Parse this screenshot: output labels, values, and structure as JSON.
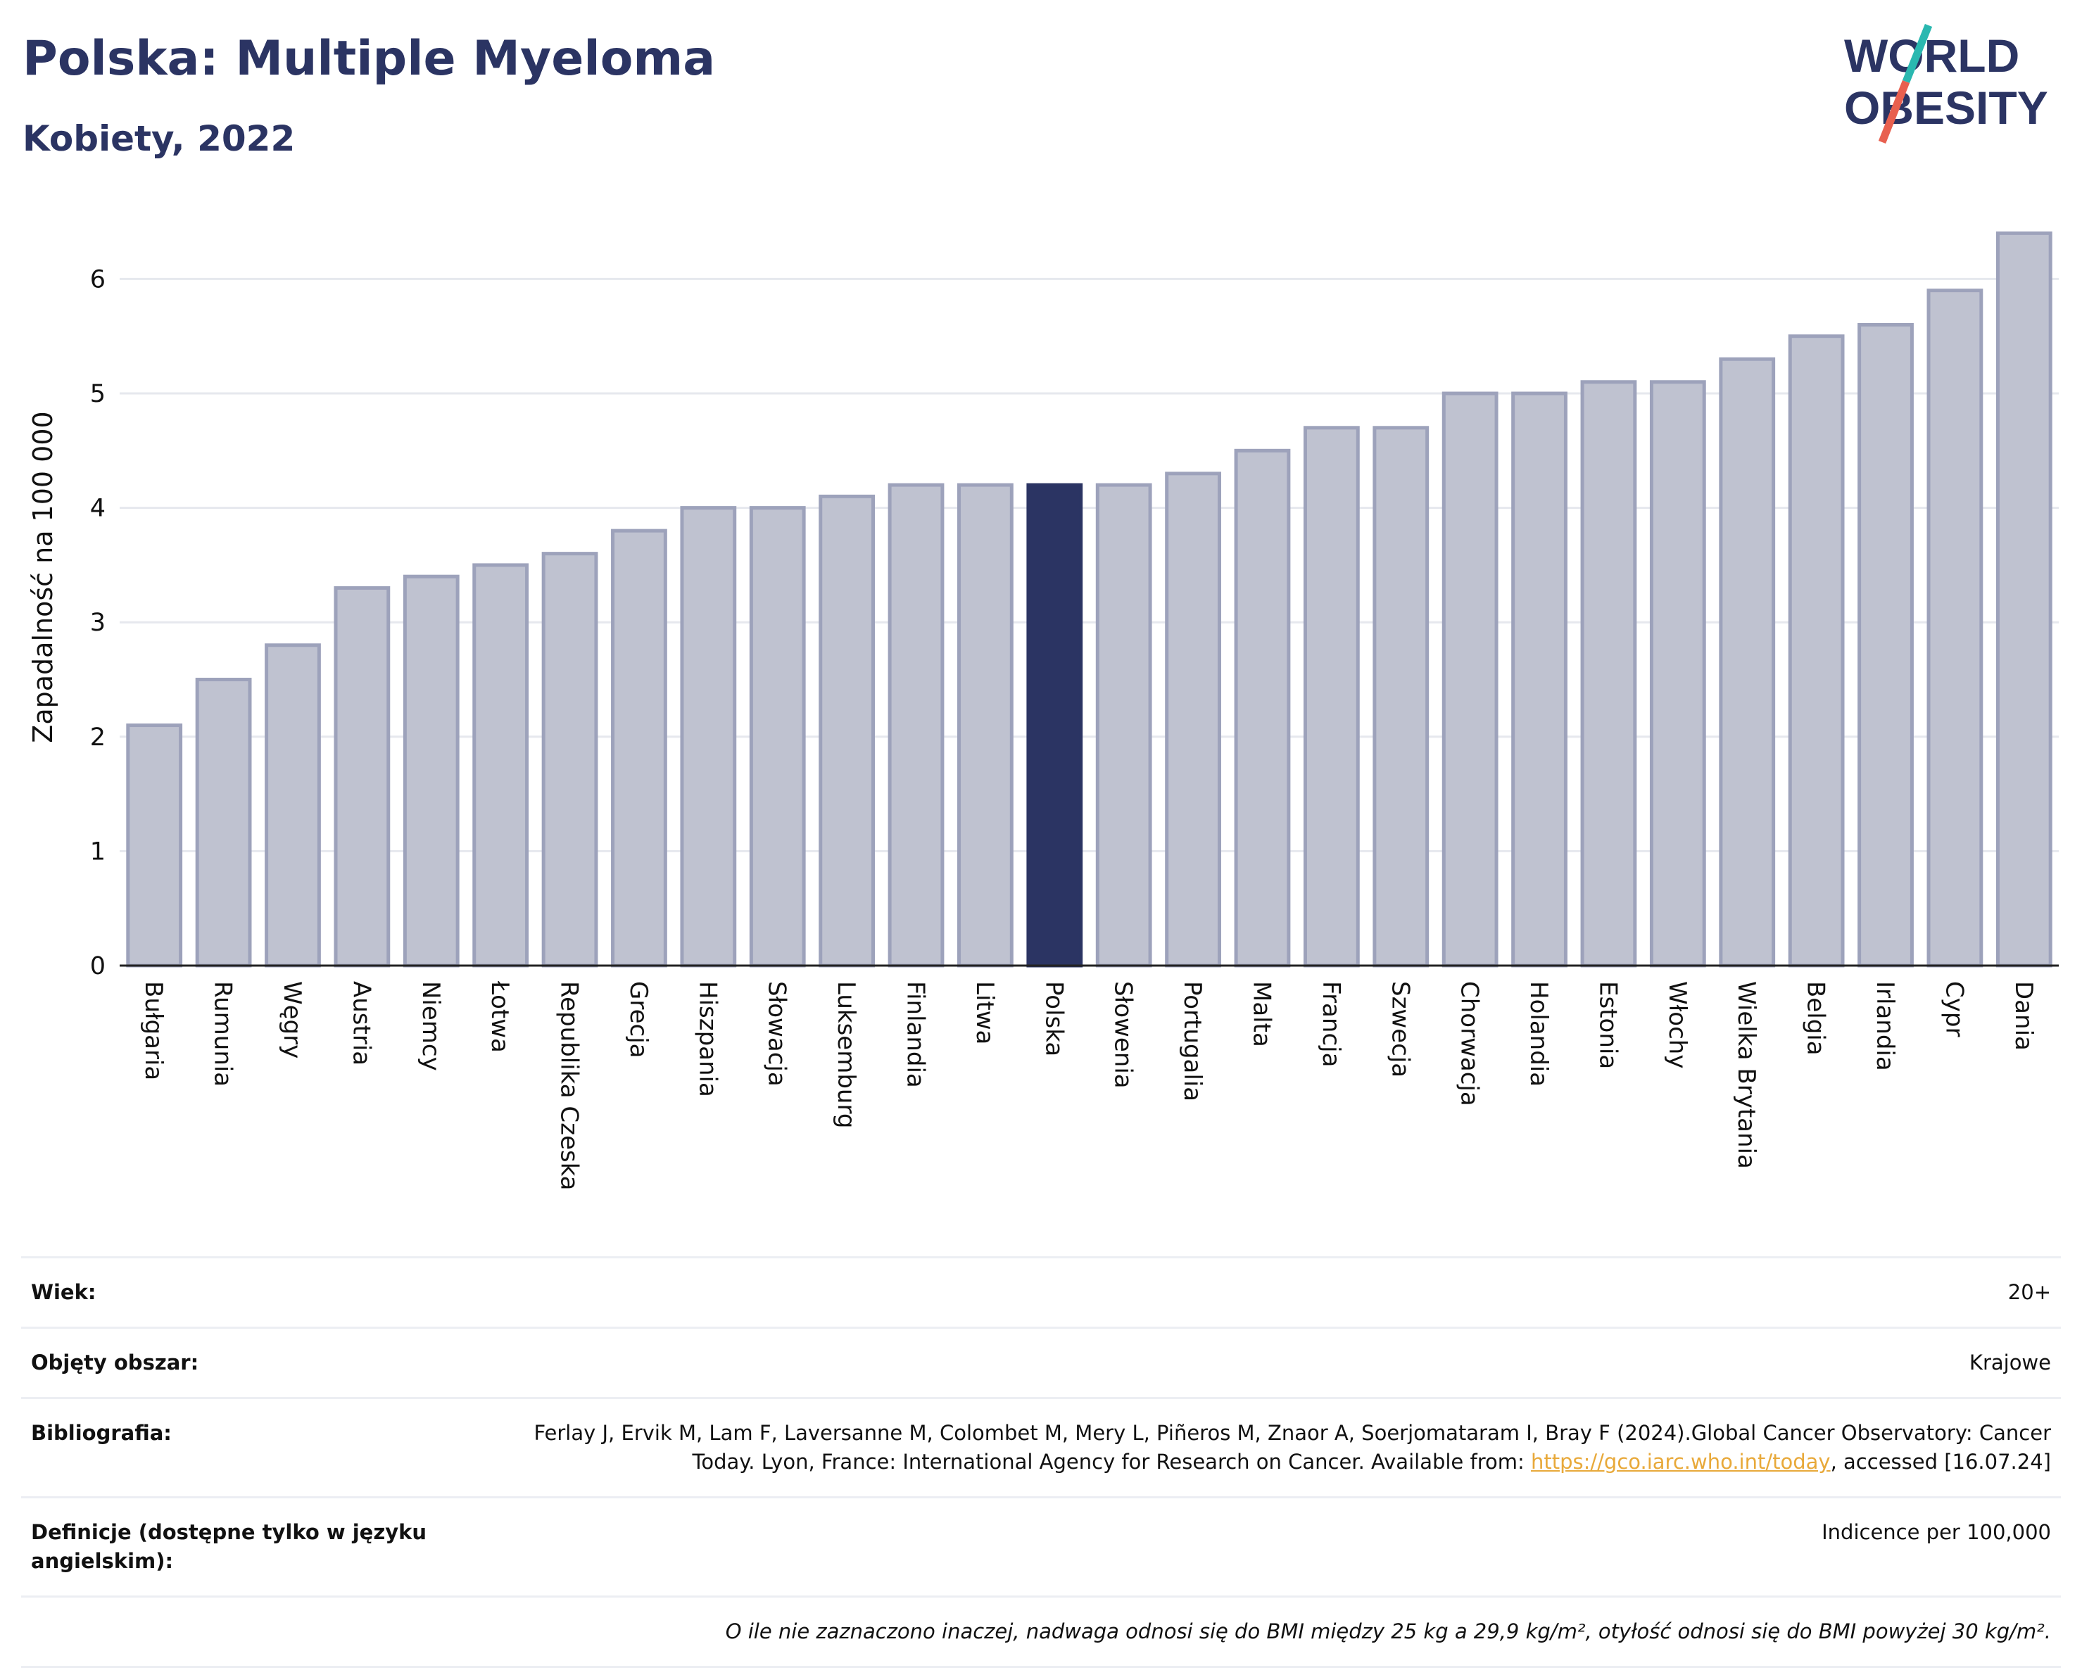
{
  "header": {
    "title": "Polska: Multiple Myeloma",
    "subtitle": "Kobiety, 2022"
  },
  "logo": {
    "line1": "WORLD",
    "line2": "OBESITY",
    "accent_colors": [
      "#2ab8b0",
      "#e8604f"
    ]
  },
  "colors": {
    "bar": "#bfc2d0",
    "bar_border": "#9da2bb",
    "highlight": "#2b3463",
    "title": "#2b3463",
    "link": "#e8a93a"
  },
  "chart_data": {
    "type": "bar",
    "title": "Polska: Multiple Myeloma",
    "subtitle": "Kobiety, 2022",
    "xlabel": "",
    "ylabel": "Zapadalność na 100 000",
    "ylim": [
      0,
      6.5
    ],
    "yticks": [
      0,
      1,
      2,
      3,
      4,
      5,
      6
    ],
    "grid": true,
    "highlight": "Polska",
    "categories": [
      "Bułgaria",
      "Rumunia",
      "Węgry",
      "Austria",
      "Niemcy",
      "Łotwa",
      "Republika Czeska",
      "Grecja",
      "Hiszpania",
      "Słowacja",
      "Luksemburg",
      "Finlandia",
      "Litwa",
      "Polska",
      "Słowenia",
      "Portugalia",
      "Malta",
      "Francja",
      "Szwecja",
      "Chorwacja",
      "Holandia",
      "Estonia",
      "Włochy",
      "Wielka Brytania",
      "Belgia",
      "Irlandia",
      "Cypr",
      "Dania"
    ],
    "values": [
      2.1,
      2.5,
      2.8,
      3.3,
      3.4,
      3.5,
      3.6,
      3.8,
      4.0,
      4.0,
      4.1,
      4.2,
      4.2,
      4.2,
      4.2,
      4.3,
      4.5,
      4.7,
      4.7,
      5.0,
      5.0,
      5.1,
      5.1,
      5.3,
      5.5,
      5.6,
      5.9,
      6.4
    ]
  },
  "meta": {
    "age_label": "Wiek:",
    "age_value": "20+",
    "area_label": "Objęty obszar:",
    "area_value": "Krajowe",
    "bib_label": "Bibliografia:",
    "bib_text_1": "Ferlay J, Ervik M, Lam F, Laversanne M, Colombet M, Mery L, Piñeros M, Znaor A, Soerjomataram I, Bray F (2024).Global Cancer Observatory: Cancer Today. Lyon, France: International Agency for Research on Cancer. Available from: ",
    "bib_link": "https://gco.iarc.who.int/today",
    "bib_text_2": ", accessed [16.07.24]",
    "def_label": "Definicje (dostępne tylko w języku angielskim):",
    "def_value": "Indicence per 100,000",
    "note": "O ile nie zaznaczono inaczej, nadwaga odnosi się do BMI między 25 kg a 29,9 kg/m², otyłość odnosi się do BMI powyżej 30 kg/m²."
  }
}
